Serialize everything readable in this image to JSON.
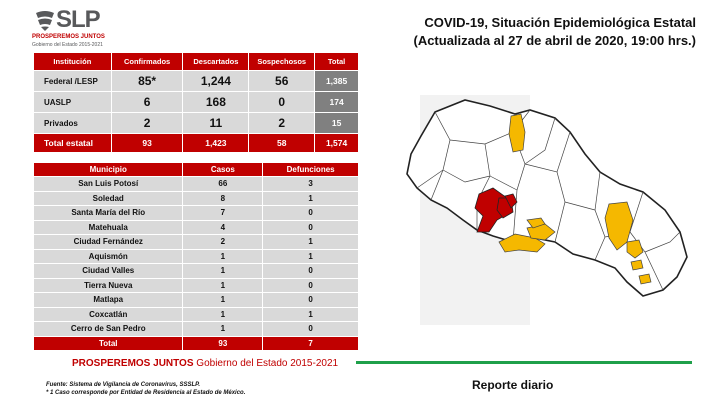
{
  "logo": {
    "text": "SLP",
    "sub1": "PROSPEREMOS JUNTOS",
    "sub2": "Gobierno del Estado 2015-2021"
  },
  "title": {
    "line1": "COVID-19, Situación Epidemiológica Estatal",
    "line2": "(Actualizada al 27 de abril de 2020, 19:00 hrs.)"
  },
  "institutions": {
    "headers": [
      "Institución",
      "Confirmados",
      "Descartados",
      "Sospechosos",
      "Total"
    ],
    "rows": [
      {
        "name": "Federal /LESP",
        "confirmados": "85*",
        "descartados": "1,244",
        "sospechosos": "56",
        "total": "1,385"
      },
      {
        "name": "UASLP",
        "confirmados": "6",
        "descartados": "168",
        "sospechosos": "0",
        "total": "174"
      },
      {
        "name": "Privados",
        "confirmados": "2",
        "descartados": "11",
        "sospechosos": "2",
        "total": "15"
      }
    ],
    "total": {
      "name": "Total estatal",
      "confirmados": "93",
      "descartados": "1,423",
      "sospechosos": "58",
      "total": "1,574"
    }
  },
  "municipios": {
    "headers": [
      "Municipio",
      "Casos",
      "Defunciones"
    ],
    "rows": [
      {
        "name": "San Luis Potosí",
        "casos": "66",
        "defunciones": "3"
      },
      {
        "name": "Soledad",
        "casos": "8",
        "defunciones": "1"
      },
      {
        "name": "Santa María del Río",
        "casos": "7",
        "defunciones": "0"
      },
      {
        "name": "Matehuala",
        "casos": "4",
        "defunciones": "0"
      },
      {
        "name": "Ciudad Fernández",
        "casos": "2",
        "defunciones": "1"
      },
      {
        "name": "Aquismón",
        "casos": "1",
        "defunciones": "1"
      },
      {
        "name": "Ciudad Valles",
        "casos": "1",
        "defunciones": "0"
      },
      {
        "name": "Tierra Nueva",
        "casos": "1",
        "defunciones": "0"
      },
      {
        "name": "Matlapa",
        "casos": "1",
        "defunciones": "0"
      },
      {
        "name": "Coxcatlán",
        "casos": "1",
        "defunciones": "1"
      },
      {
        "name": "Cerro de San Pedro",
        "casos": "1",
        "defunciones": "0"
      }
    ],
    "total": {
      "name": "Total",
      "casos": "93",
      "defunciones": "7"
    }
  },
  "footer": {
    "brand_bold": "PROSPEREMOS JUNTOS",
    "brand_rest": "Gobierno del Estado 2015-2021",
    "note1": "Fuente: Sistema de Vigilancia de Coronavirus, SSSLP.",
    "note2": "* 1 Caso corresponde por Entidad de Residencia al Estado de México.",
    "report": "Reporte diario"
  },
  "colors": {
    "red": "#c00000",
    "yellow": "#f5b800",
    "green": "#1fa04a",
    "gray": "#d9d9d9"
  }
}
